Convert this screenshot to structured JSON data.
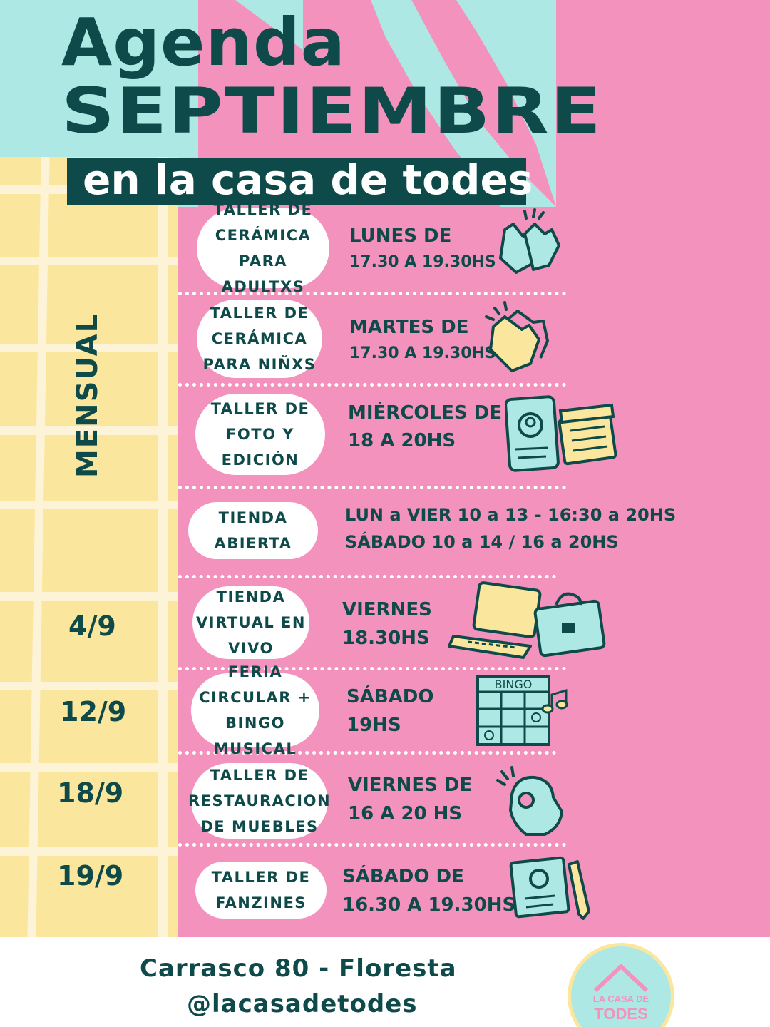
{
  "header": {
    "title_line1": "Agenda",
    "title_line2": "SEPTIEMBRE",
    "subtitle": "en la casa de todes"
  },
  "side_label": "MENSUAL",
  "events": [
    {
      "name_lines": [
        "TALLER DE",
        "CERÁMICA",
        "PARA ADULTXS"
      ],
      "schedule_line1": "LUNES DE",
      "schedule_line2": "17.30 A 19.30HS",
      "date": "",
      "icon": "high-five-icon"
    },
    {
      "name_lines": [
        "TALLER DE",
        "CERÁMICA",
        "PARA NIÑXS"
      ],
      "schedule_line1": "MARTES DE",
      "schedule_line2": "17.30 A 19.30HS",
      "date": "",
      "icon": "clapping-hands-icon"
    },
    {
      "name_lines": [
        "TALLER DE",
        "FOTO Y",
        "EDICIÓN"
      ],
      "schedule_line1": "MIÉRCOLES DE",
      "schedule_line2": "18 A 20HS",
      "date": "",
      "icon": "phone-clapperboard-icon"
    },
    {
      "name_lines": [
        "TIENDA",
        "ABIERTA"
      ],
      "schedule_line1": "LUN a VIER 10 a 13 - 16:30 a 20HS",
      "schedule_line2": "SÁBADO  10 a 14 / 16 a 20HS",
      "date": "",
      "icon": ""
    },
    {
      "name_lines": [
        "TIENDA",
        "VIRTUAL EN",
        "VIVO"
      ],
      "schedule_line1": "VIERNES",
      "schedule_line2": "18.30HS",
      "date": "4/9",
      "icon": "laptop-briefcase-icon"
    },
    {
      "name_lines": [
        "FERIA",
        "CIRCULAR +",
        "BINGO MUSICAL"
      ],
      "schedule_line1": "SÁBADO",
      "schedule_line2": "19HS",
      "date": "12/9",
      "icon": "bingo-card-icon",
      "icon_text": "BINGO"
    },
    {
      "name_lines": [
        "TALLER DE",
        "RESTAURACION",
        "DE MUEBLES"
      ],
      "schedule_line1": "VIERNES DE",
      "schedule_line2": "16 A 20 HS",
      "date": "18/9",
      "icon": "ok-hand-icon"
    },
    {
      "name_lines": [
        "TALLER DE",
        "FANZINES"
      ],
      "schedule_line1": "SÁBADO DE",
      "schedule_line2": "16.30 A 19.30HS",
      "date": "19/9",
      "icon": "id-card-pencil-icon"
    }
  ],
  "footer": {
    "address": "Carrasco 80 - Floresta",
    "handle": "@lacasadetodes",
    "logo_line1": "LA CASA DE",
    "logo_line2": "TODES"
  },
  "colors": {
    "pink": "#f393bd",
    "teal": "#aee8e4",
    "yellow": "#fbe69d",
    "dark_teal": "#0e4a49",
    "white": "#ffffff"
  }
}
